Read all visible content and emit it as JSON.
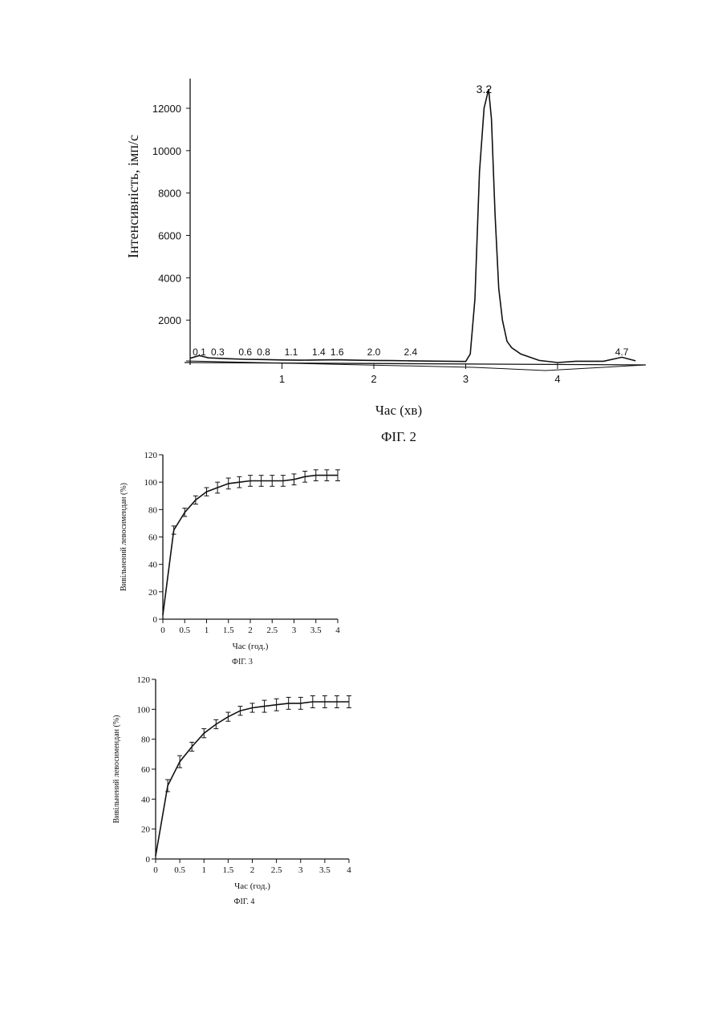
{
  "chart_data": [
    {
      "type": "line",
      "caption": "ФІГ. 2",
      "xlabel": "Час (хв)",
      "ylabel": "Інтенсивність, імп/с",
      "xlim": [
        0,
        4.85
      ],
      "ylim": [
        0,
        13000
      ],
      "x_ticks": [
        "1",
        "2",
        "3",
        "4"
      ],
      "y_ticks": [
        "2000",
        "4000",
        "6000",
        "8000",
        "10000",
        "12000"
      ],
      "peak_labels": [
        {
          "x": 0.1,
          "label": "0.1"
        },
        {
          "x": 0.3,
          "label": "0.3"
        },
        {
          "x": 0.6,
          "label": "0.6"
        },
        {
          "x": 0.8,
          "label": "0.8"
        },
        {
          "x": 1.1,
          "label": "1.1"
        },
        {
          "x": 1.4,
          "label": "1.4"
        },
        {
          "x": 1.6,
          "label": "1.6"
        },
        {
          "x": 2.0,
          "label": "2.0"
        },
        {
          "x": 2.4,
          "label": "2.4"
        },
        {
          "x": 3.2,
          "label": "3.2"
        },
        {
          "x": 4.7,
          "label": "4.7"
        }
      ],
      "series": [
        {
          "x": [
            0,
            0.1,
            0.2,
            0.4,
            0.6,
            0.8,
            1.0,
            1.2,
            1.4,
            1.6,
            1.8,
            2.0,
            2.2,
            2.4,
            2.6,
            2.8,
            3.0,
            3.05,
            3.1,
            3.15,
            3.2,
            3.25,
            3.28,
            3.32,
            3.36,
            3.4,
            3.45,
            3.5,
            3.6,
            3.8,
            4.0,
            4.2,
            4.5,
            4.7,
            4.85
          ],
          "values": [
            200,
            330,
            220,
            180,
            150,
            140,
            120,
            110,
            120,
            130,
            110,
            100,
            90,
            80,
            70,
            60,
            50,
            400,
            3000,
            9000,
            12000,
            12900,
            11500,
            7000,
            3500,
            2000,
            1000,
            700,
            400,
            100,
            0,
            60,
            60,
            250,
            80
          ]
        }
      ]
    },
    {
      "type": "line",
      "caption": "ФІГ. 3",
      "xlabel": "Час (год.)",
      "ylabel": "Вивільнений левосимендан (%)",
      "xlim": [
        0,
        4
      ],
      "ylim": [
        0,
        120
      ],
      "x_ticks": [
        "0",
        "0.5",
        "1",
        "1.5",
        "2",
        "2.5",
        "3",
        "3.5",
        "4"
      ],
      "y_ticks": [
        "0",
        "20",
        "40",
        "60",
        "80",
        "100",
        "120"
      ],
      "series": [
        {
          "x": [
            0,
            0.25,
            0.5,
            0.75,
            1.0,
            1.25,
            1.5,
            1.75,
            2.0,
            2.25,
            2.5,
            2.75,
            3.0,
            3.25,
            3.5,
            3.75,
            4.0
          ],
          "values": [
            3,
            65,
            78,
            87,
            93,
            96,
            99,
            100,
            101,
            101,
            101,
            101,
            102,
            104,
            105,
            105,
            105
          ],
          "errors": [
            0,
            3,
            3,
            3,
            3,
            4,
            4,
            4,
            4,
            4,
            4,
            4,
            4,
            4,
            4,
            4,
            4
          ]
        }
      ]
    },
    {
      "type": "line",
      "caption": "ФІГ. 4",
      "xlabel": "Час (год.)",
      "ylabel": "Вивільнений левосимендан (%)",
      "xlim": [
        0,
        4
      ],
      "ylim": [
        0,
        120
      ],
      "x_ticks": [
        "0",
        "0.5",
        "1",
        "1.5",
        "2",
        "2.5",
        "3",
        "3.5",
        "4"
      ],
      "y_ticks": [
        "0",
        "20",
        "40",
        "60",
        "80",
        "100",
        "120"
      ],
      "series": [
        {
          "x": [
            0,
            0.25,
            0.5,
            0.75,
            1.0,
            1.25,
            1.5,
            1.75,
            2.0,
            2.25,
            2.5,
            2.75,
            3.0,
            3.25,
            3.5,
            3.75,
            4.0
          ],
          "values": [
            2,
            49,
            65,
            75,
            84,
            90,
            95,
            99,
            101,
            102,
            103,
            104,
            104,
            105,
            105,
            105,
            105
          ],
          "errors": [
            0,
            4,
            4,
            3,
            3,
            3,
            3,
            3,
            3,
            4,
            4,
            4,
            4,
            4,
            4,
            4,
            4
          ]
        }
      ]
    }
  ]
}
